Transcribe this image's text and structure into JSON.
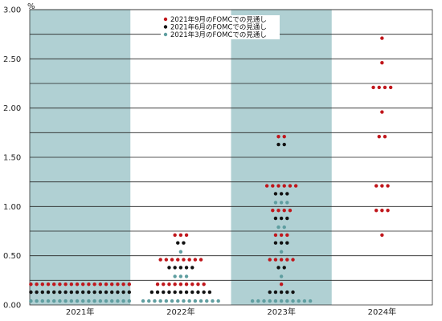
{
  "chart_data": {
    "type": "scatter",
    "y_unit": "%",
    "ylim": [
      0,
      3
    ],
    "yticks": [
      "0.00",
      "0.50",
      "1.00",
      "1.50",
      "2.00",
      "2.50",
      "3.00"
    ],
    "grid": true,
    "legend_position": "top-center",
    "categories": [
      "2021年",
      "2022年",
      "2023年",
      "2024年"
    ],
    "shaded_categories": [
      "2021年",
      "2023年"
    ],
    "colors": {
      "sep": "#c0161b",
      "jun": "#111111",
      "mar": "#5f9ea0",
      "band": "#b0d0d3",
      "grid": "#222222"
    },
    "series": [
      {
        "name": "2021年9月のFOMCでの見通し",
        "color_key": "sep",
        "points": {
          "2021年": [
            {
              "y": 0.21,
              "n": 18
            }
          ],
          "2022年": [
            {
              "y": 0.21,
              "n": 9
            },
            {
              "y": 0.46,
              "n": 8
            },
            {
              "y": 0.71,
              "n": 3
            }
          ],
          "2023年": [
            {
              "y": 0.21,
              "n": 1
            },
            {
              "y": 0.46,
              "n": 5
            },
            {
              "y": 0.71,
              "n": 3
            },
            {
              "y": 0.96,
              "n": 4
            },
            {
              "y": 1.21,
              "n": 6
            },
            {
              "y": 1.71,
              "n": 2
            }
          ],
          "2024年": [
            {
              "y": 0.71,
              "n": 1
            },
            {
              "y": 0.96,
              "n": 3
            },
            {
              "y": 1.21,
              "n": 3
            },
            {
              "y": 1.71,
              "n": 2
            },
            {
              "y": 1.96,
              "n": 1
            },
            {
              "y": 2.21,
              "n": 4
            },
            {
              "y": 2.46,
              "n": 1
            },
            {
              "y": 2.71,
              "n": 1
            }
          ]
        }
      },
      {
        "name": "2021年6月のFOMCでの見通し",
        "color_key": "jun",
        "points": {
          "2021年": [
            {
              "y": 0.13,
              "n": 18
            }
          ],
          "2022年": [
            {
              "y": 0.13,
              "n": 11
            },
            {
              "y": 0.38,
              "n": 5
            },
            {
              "y": 0.63,
              "n": 2
            }
          ],
          "2023年": [
            {
              "y": 0.13,
              "n": 5
            },
            {
              "y": 0.38,
              "n": 2
            },
            {
              "y": 0.63,
              "n": 3
            },
            {
              "y": 0.88,
              "n": 3
            },
            {
              "y": 1.13,
              "n": 3
            },
            {
              "y": 1.63,
              "n": 2
            }
          ]
        }
      },
      {
        "name": "2021年3月のFOMCでの見通し",
        "color_key": "mar",
        "points": {
          "2021年": [
            {
              "y": 0.04,
              "n": 18
            }
          ],
          "2022年": [
            {
              "y": 0.04,
              "n": 14
            },
            {
              "y": 0.29,
              "n": 3
            },
            {
              "y": 0.54,
              "n": 1
            }
          ],
          "2023年": [
            {
              "y": 0.04,
              "n": 11
            },
            {
              "y": 0.29,
              "n": 1
            },
            {
              "y": 0.54,
              "n": 1
            },
            {
              "y": 0.79,
              "n": 2
            },
            {
              "y": 1.04,
              "n": 3
            }
          ]
        }
      }
    ]
  }
}
